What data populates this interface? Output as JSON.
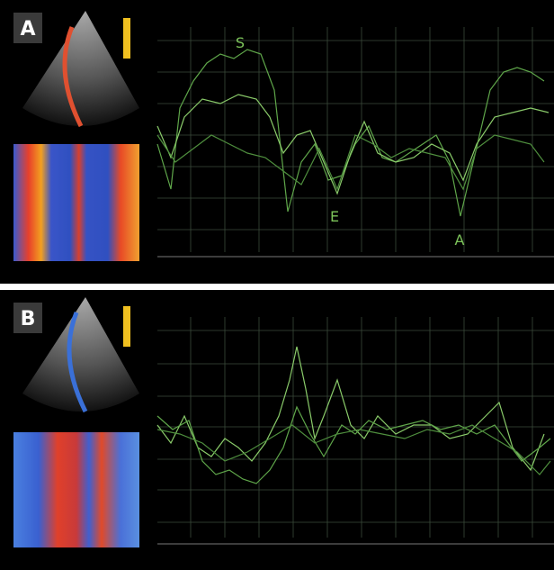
{
  "panels": [
    {
      "label": "A",
      "annotations": [
        "S",
        "E",
        "A"
      ]
    },
    {
      "label": "B"
    }
  ]
}
